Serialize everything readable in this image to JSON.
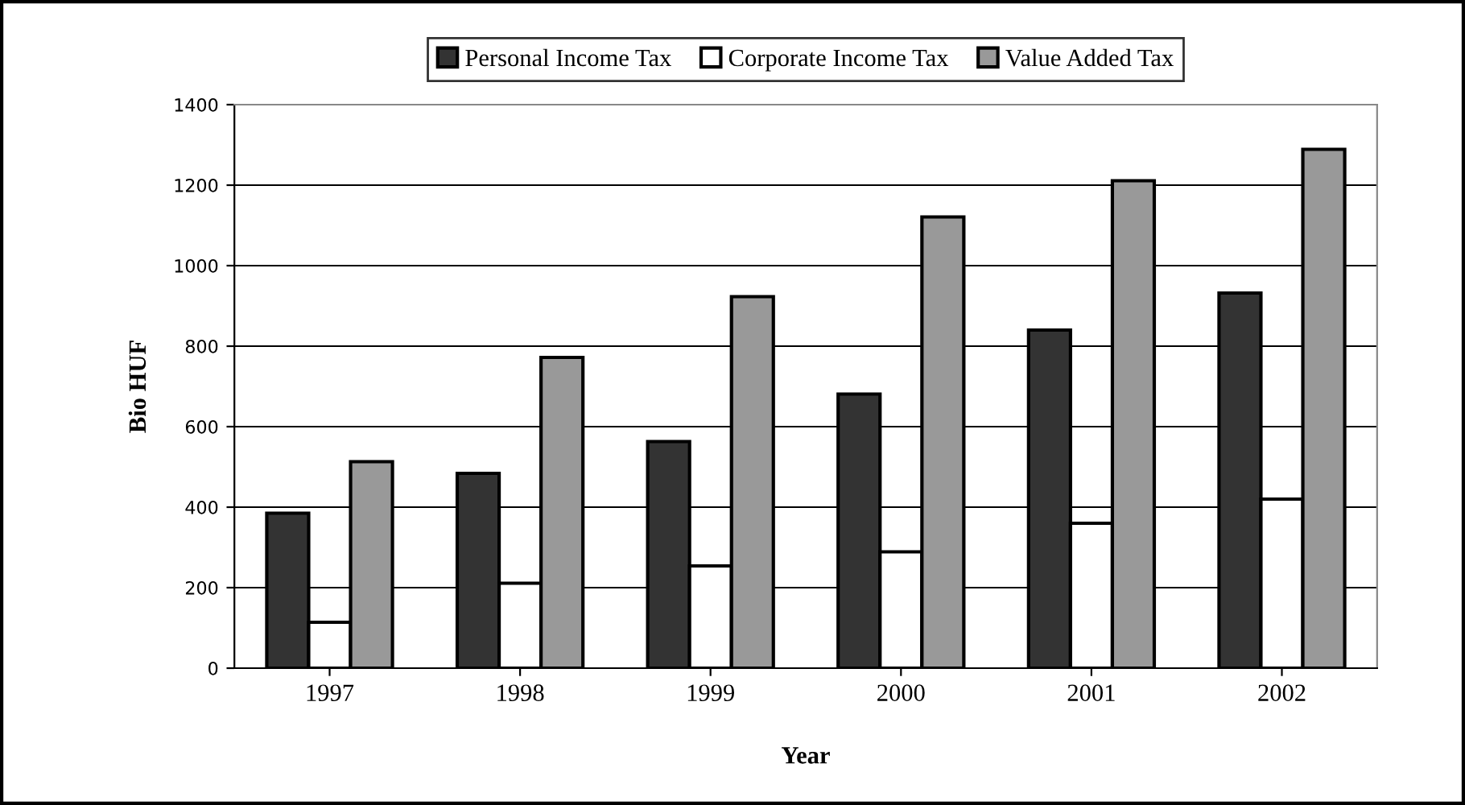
{
  "chart_data": {
    "type": "bar",
    "xlabel": "Year",
    "ylabel": "Bio HUF",
    "categories": [
      "1997",
      "1998",
      "1999",
      "2000",
      "2001",
      "2002"
    ],
    "series": [
      {
        "name": "Personal Income Tax",
        "color": "#333333",
        "values": [
          385,
          484,
          563,
          681,
          840,
          932
        ]
      },
      {
        "name": "Corporate Income Tax",
        "color": "#ffffff",
        "values": [
          114,
          211,
          254,
          289,
          360,
          420
        ]
      },
      {
        "name": "Value Added Tax",
        "color": "#999999",
        "values": [
          513,
          772,
          923,
          1121,
          1211,
          1289
        ]
      }
    ],
    "ylim": [
      0,
      1400
    ],
    "yticks": [
      0,
      200,
      400,
      600,
      800,
      1000,
      1200,
      1400
    ],
    "grid": "y",
    "legend": "top"
  }
}
